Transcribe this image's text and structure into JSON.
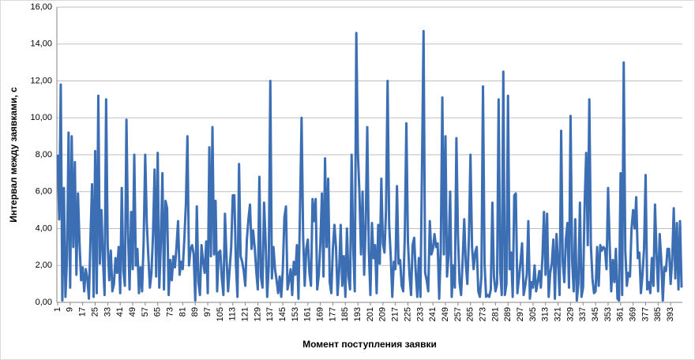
{
  "chart_data": {
    "type": "line",
    "y_label": "Интервал между заявками, с",
    "x_label": "Момент поступления заявки",
    "color": "#3c6eb4",
    "grid": true,
    "xlim": [
      0.5,
      400.5
    ],
    "ylim": [
      0,
      16
    ],
    "yticks": [
      {
        "value": 0,
        "label": "0,00"
      },
      {
        "value": 2,
        "label": "2,00"
      },
      {
        "value": 4,
        "label": "4,00"
      },
      {
        "value": 6,
        "label": "6,00"
      },
      {
        "value": 8,
        "label": "8,00"
      },
      {
        "value": 10,
        "label": "10,00"
      },
      {
        "value": 12,
        "label": "12,00"
      },
      {
        "value": 14,
        "label": "14,00"
      },
      {
        "value": 16,
        "label": "16,00"
      }
    ],
    "xticks": [
      1,
      9,
      17,
      25,
      33,
      41,
      49,
      57,
      65,
      73,
      81,
      89,
      97,
      105,
      113,
      121,
      129,
      137,
      145,
      153,
      161,
      169,
      177,
      185,
      193,
      201,
      209,
      217,
      225,
      233,
      241,
      249,
      257,
      265,
      273,
      281,
      289,
      297,
      305,
      313,
      321,
      329,
      337,
      345,
      353,
      361,
      369,
      377,
      385,
      393
    ],
    "x": [
      1,
      2,
      3,
      4,
      5,
      6,
      7,
      8,
      9,
      10,
      11,
      12,
      13,
      14,
      15,
      16,
      17,
      18,
      19,
      20,
      21,
      22,
      23,
      24,
      25,
      26,
      27,
      28,
      29,
      30,
      31,
      32,
      33,
      34,
      35,
      36,
      37,
      38,
      39,
      40,
      41,
      42,
      43,
      44,
      45,
      46,
      47,
      48,
      49,
      50,
      51,
      52,
      53,
      54,
      55,
      56,
      57,
      58,
      59,
      60,
      61,
      62,
      63,
      64,
      65,
      66,
      67,
      68,
      69,
      70,
      71,
      72,
      73,
      74,
      75,
      76,
      77,
      78,
      79,
      80,
      81,
      82,
      83,
      84,
      85,
      86,
      87,
      88,
      89,
      90,
      91,
      92,
      93,
      94,
      95,
      96,
      97,
      98,
      99,
      100,
      101,
      102,
      103,
      104,
      105,
      106,
      107,
      108,
      109,
      110,
      111,
      112,
      113,
      114,
      115,
      116,
      117,
      118,
      119,
      120,
      121,
      122,
      123,
      124,
      125,
      126,
      127,
      128,
      129,
      130,
      131,
      132,
      133,
      134,
      135,
      136,
      137,
      138,
      139,
      140,
      141,
      142,
      143,
      144,
      145,
      146,
      147,
      148,
      149,
      150,
      151,
      152,
      153,
      154,
      155,
      156,
      157,
      158,
      159,
      160,
      161,
      162,
      163,
      164,
      165,
      166,
      167,
      168,
      169,
      170,
      171,
      172,
      173,
      174,
      175,
      176,
      177,
      178,
      179,
      180,
      181,
      182,
      183,
      184,
      185,
      186,
      187,
      188,
      189,
      190,
      191,
      192,
      193,
      194,
      195,
      196,
      197,
      198,
      199,
      200,
      201,
      202,
      203,
      204,
      205,
      206,
      207,
      208,
      209,
      210,
      211,
      212,
      213,
      214,
      215,
      216,
      217,
      218,
      219,
      220,
      221,
      222,
      223,
      224,
      225,
      226,
      227,
      228,
      229,
      230,
      231,
      232,
      233,
      234,
      235,
      236,
      237,
      238,
      239,
      240,
      241,
      242,
      243,
      244,
      245,
      246,
      247,
      248,
      249,
      250,
      251,
      252,
      253,
      254,
      255,
      256,
      257,
      258,
      259,
      260,
      261,
      262,
      263,
      264,
      265,
      266,
      267,
      268,
      269,
      270,
      271,
      272,
      273,
      274,
      275,
      276,
      277,
      278,
      279,
      280,
      281,
      282,
      283,
      284,
      285,
      286,
      287,
      288,
      289,
      290,
      291,
      292,
      293,
      294,
      295,
      296,
      297,
      298,
      299,
      300,
      301,
      302,
      303,
      304,
      305,
      306,
      307,
      308,
      309,
      310,
      311,
      312,
      313,
      314,
      315,
      316,
      317,
      318,
      319,
      320,
      321,
      322,
      323,
      324,
      325,
      326,
      327,
      328,
      329,
      330,
      331,
      332,
      333,
      334,
      335,
      336,
      337,
      338,
      339,
      340,
      341,
      342,
      343,
      344,
      345,
      346,
      347,
      348,
      349,
      350,
      351,
      352,
      353,
      354,
      355,
      356,
      357,
      358,
      359,
      360,
      361,
      362,
      363,
      364,
      365,
      366,
      367,
      368,
      369,
      370,
      371,
      372,
      373,
      374,
      375,
      376,
      377,
      378,
      379,
      380,
      381,
      382,
      383,
      384,
      385,
      386,
      387,
      388,
      389,
      390,
      391,
      392,
      393,
      394,
      395,
      396,
      397,
      398,
      399,
      400
    ],
    "values": [
      8.0,
      4.5,
      11.8,
      0.1,
      6.2,
      0.3,
      2.4,
      9.2,
      0.8,
      9.0,
      3.0,
      7.6,
      1.5,
      5.9,
      3.2,
      1.2,
      1.9,
      0.6,
      1.8,
      1.3,
      0.2,
      3.5,
      6.4,
      0.3,
      8.2,
      0.5,
      11.2,
      2.1,
      5.0,
      2.3,
      0.4,
      11.0,
      3.1,
      1.2,
      2.8,
      0.6,
      1.0,
      2.4,
      1.6,
      3.0,
      0.5,
      6.2,
      1.7,
      0.9,
      9.9,
      3.8,
      0.7,
      4.9,
      1.8,
      8.0,
      2.0,
      2.9,
      0.5,
      1.9,
      0.6,
      3.3,
      8.0,
      4.3,
      2.5,
      0.8,
      1.6,
      3.7,
      7.2,
      1.4,
      8.1,
      0.8,
      3.2,
      7.0,
      0.7,
      5.5,
      5.1,
      0.4,
      2.3,
      1.2,
      2.5,
      1.9,
      3.0,
      4.4,
      1.5,
      2.2,
      1.8,
      3.4,
      5.3,
      9.0,
      2.0,
      2.9,
      3.1,
      2.6,
      0.1,
      5.2,
      1.1,
      0.4,
      3.1,
      2.2,
      1.6,
      3.3,
      0.5,
      8.4,
      2.5,
      9.5,
      2.6,
      5.5,
      0.6,
      2.7,
      2.8,
      1.3,
      0.4,
      4.8,
      2.4,
      0.6,
      1.8,
      3.0,
      5.8,
      5.8,
      2.1,
      0.3,
      7.5,
      2.5,
      2.2,
      1.7,
      0.9,
      3.4,
      4.5,
      5.3,
      2.9,
      3.9,
      3.0,
      1.7,
      0.7,
      6.8,
      1.4,
      0.8,
      5.4,
      3.3,
      0.3,
      2.0,
      12.0,
      1.3,
      3.0,
      1.8,
      1.2,
      0.5,
      1.4,
      0.3,
      1.8,
      4.6,
      5.2,
      0.7,
      1.2,
      1.8,
      0.4,
      2.2,
      1.5,
      3.1,
      0.2,
      5.1,
      10.0,
      3.5,
      0.9,
      2.9,
      3.4,
      1.6,
      0.9,
      5.6,
      4.4,
      5.6,
      0.7,
      1.5,
      3.2,
      5.9,
      1.4,
      7.8,
      3.0,
      6.7,
      1.1,
      0.5,
      2.9,
      4.2,
      3.0,
      0.4,
      1.7,
      4.2,
      0.9,
      2.5,
      0.3,
      4.0,
      1.4,
      0.7,
      8.0,
      3.0,
      0.6,
      14.6,
      8.1,
      5.9,
      2.6,
      6.0,
      1.5,
      4.2,
      9.5,
      2.8,
      0.4,
      4.3,
      2.4,
      3.1,
      0.5,
      4.2,
      2.1,
      6.7,
      3.2,
      2.7,
      5.0,
      12.0,
      4.2,
      2.5,
      0.3,
      2.2,
      1.8,
      6.3,
      2.1,
      2.3,
      0.9,
      0.6,
      3.6,
      9.7,
      3.3,
      1.5,
      0.4,
      3.1,
      3.5,
      1.6,
      0.3,
      2.4,
      0.3,
      7.3,
      14.7,
      1.6,
      1.2,
      0.6,
      4.4,
      2.6,
      2.9,
      3.7,
      3.0,
      3.2,
      0.2,
      2.8,
      11.1,
      2.6,
      9.0,
      1.4,
      2.6,
      6.0,
      0.3,
      2.0,
      0.8,
      8.9,
      3.6,
      1.1,
      0.4,
      2.3,
      4.5,
      2.1,
      1.0,
      3.5,
      8.0,
      3.0,
      1.8,
      2.7,
      3.0,
      0.6,
      0.3,
      1.4,
      11.7,
      2.1,
      0.3,
      0.4,
      0.3,
      0.7,
      5.4,
      1.4,
      0.6,
      1.0,
      11.0,
      1.7,
      0.4,
      12.5,
      0.4,
      1.0,
      11.2,
      1.8,
      2.7,
      0.3,
      5.8,
      5.9,
      0.5,
      1.3,
      2.2,
      3.2,
      0.4,
      0.9,
      1.5,
      4.4,
      0.2,
      1.1,
      0.8,
      2.0,
      0.6,
      1.1,
      1.7,
      0.8,
      2.4,
      4.9,
      1.5,
      4.8,
      0.3,
      1.6,
      2.1,
      3.4,
      0.2,
      3.7,
      2.2,
      0.4,
      9.3,
      2.2,
      1.1,
      3.4,
      4.3,
      0.8,
      10.1,
      2.3,
      0.6,
      4.5,
      0.1,
      1.0,
      5.4,
      0.3,
      0.8,
      5.3,
      8.1,
      3.1,
      11.0,
      3.1,
      1.3,
      0.5,
      0.6,
      3.0,
      0.9,
      3.1,
      2.8,
      3.0,
      2.9,
      1.8,
      6.2,
      3.2,
      0.6,
      2.3,
      1.1,
      2.9,
      0.2,
      0.1,
      7.0,
      0.4,
      13.0,
      2.8,
      0.9,
      1.6,
      1.4,
      4.0,
      5.0,
      4.0,
      5.7,
      2.4,
      2.7,
      0.5,
      1.5,
      2.9,
      6.9,
      0.7,
      1.1,
      0.5,
      2.4,
      0.9,
      5.3,
      2.6,
      0.6,
      3.7,
      2.3,
      0.1,
      1.9,
      1.7,
      2.9,
      2.9,
      1.0,
      2.3,
      5.1,
      1.3,
      4.3,
      0.7,
      4.4,
      0.8
    ]
  }
}
